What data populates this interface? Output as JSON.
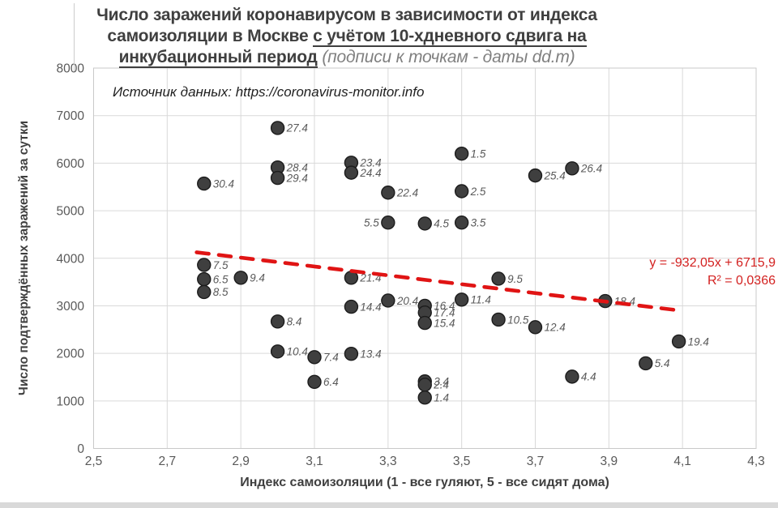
{
  "title": {
    "line1": "Число заражений коронавирусом в зависимости от индекса",
    "line2_normal": "самоизоляции в Москве ",
    "line2_underlined": "с учётом 10-хдневного сдвига на",
    "line3_underlined": "инкубационный период",
    "line3_note": " (подписи к точкам - даты dd.m)"
  },
  "source_note": "Источник данных: https://coronavirus-monitor.info",
  "trend": {
    "equation_line1": "y = -932,05x + 6715,9",
    "equation_line2": "R² = 0,0366"
  },
  "colors": {
    "marker_fill": "#3f3f3f",
    "marker_stroke": "#1c1c1c",
    "point_label": "#595959",
    "tick_label": "#595959",
    "gridline": "#d9d9d9",
    "plot_border": "#c9c9c9",
    "trendline_red": "#e01414",
    "equation_red": "#d32120",
    "title_gray": "#3f3f3f"
  },
  "chart_data": {
    "type": "scatter",
    "title": "Число заражений коронавирусом в зависимости от индекса самоизоляции в Москве с учётом 10-хдневного сдвига на инкубационный период (подписи к точкам - даты dd.m)",
    "xlabel": "Индекс самоизоляции (1 - все гуляют, 5 - все сидят дома)",
    "ylabel": "Число подтверждённых заражений за сутки",
    "xlim": [
      2.5,
      4.3
    ],
    "ylim": [
      0,
      8000
    ],
    "x_tick_values": [
      2.5,
      2.7,
      2.9,
      3.1,
      3.3,
      3.5,
      3.7,
      3.9,
      4.1,
      4.3
    ],
    "x_ticks": [
      "2,5",
      "2,7",
      "2,9",
      "3,1",
      "3,3",
      "3,5",
      "3,7",
      "3,9",
      "4,1",
      "4,3"
    ],
    "y_tick_values": [
      0,
      1000,
      2000,
      3000,
      4000,
      5000,
      6000,
      7000,
      8000
    ],
    "y_ticks": [
      "0",
      "1000",
      "2000",
      "3000",
      "4000",
      "5000",
      "6000",
      "7000",
      "8000"
    ],
    "grid": true,
    "legend": "none",
    "trendline": {
      "type": "linear",
      "slope": -932.05,
      "intercept": 6715.9,
      "r_squared": 0.0366,
      "x_start": 2.78,
      "x_end": 4.102,
      "style": "dashed"
    },
    "points": [
      {
        "label": "27.4",
        "x": 3.0,
        "y": 6740,
        "side": "right"
      },
      {
        "label": "1.5",
        "x": 3.5,
        "y": 6200,
        "side": "right"
      },
      {
        "label": "23.4",
        "x": 3.2,
        "y": 6010,
        "side": "right"
      },
      {
        "label": "28.4",
        "x": 3.0,
        "y": 5910,
        "side": "right"
      },
      {
        "label": "26.4",
        "x": 3.8,
        "y": 5890,
        "side": "right"
      },
      {
        "label": "24.4",
        "x": 3.2,
        "y": 5800,
        "side": "right"
      },
      {
        "label": "25.4",
        "x": 3.7,
        "y": 5740,
        "side": "right"
      },
      {
        "label": "29.4",
        "x": 3.0,
        "y": 5690,
        "side": "right"
      },
      {
        "label": "30.4",
        "x": 2.8,
        "y": 5570,
        "side": "right"
      },
      {
        "label": "2.5",
        "x": 3.5,
        "y": 5410,
        "side": "right"
      },
      {
        "label": "22.4",
        "x": 3.3,
        "y": 5380,
        "side": "right"
      },
      {
        "label": "5.5",
        "x": 3.3,
        "y": 4750,
        "side": "left"
      },
      {
        "label": "3.5",
        "x": 3.5,
        "y": 4750,
        "side": "right"
      },
      {
        "label": "4.5",
        "x": 3.4,
        "y": 4730,
        "side": "right"
      },
      {
        "label": "7.5",
        "x": 2.8,
        "y": 3860,
        "side": "right"
      },
      {
        "label": "9.4",
        "x": 2.9,
        "y": 3590,
        "side": "right"
      },
      {
        "label": "21.4",
        "x": 3.2,
        "y": 3590,
        "side": "right"
      },
      {
        "label": "9.5",
        "x": 3.6,
        "y": 3570,
        "side": "right"
      },
      {
        "label": "6.5",
        "x": 2.8,
        "y": 3560,
        "side": "right"
      },
      {
        "label": "8.5",
        "x": 2.8,
        "y": 3290,
        "side": "right"
      },
      {
        "label": "11.4",
        "x": 3.5,
        "y": 3130,
        "side": "right"
      },
      {
        "label": "20.4",
        "x": 3.3,
        "y": 3110,
        "side": "right"
      },
      {
        "label": "18.4",
        "x": 3.89,
        "y": 3100,
        "side": "right"
      },
      {
        "label": "16.4",
        "x": 3.4,
        "y": 3000,
        "side": "right"
      },
      {
        "label": "14.4",
        "x": 3.2,
        "y": 2980,
        "side": "right"
      },
      {
        "label": "17.4",
        "x": 3.4,
        "y": 2860,
        "side": "right"
      },
      {
        "label": "10.5",
        "x": 3.6,
        "y": 2710,
        "side": "right"
      },
      {
        "label": "8.4",
        "x": 3.0,
        "y": 2670,
        "side": "right"
      },
      {
        "label": "15.4",
        "x": 3.4,
        "y": 2640,
        "side": "right"
      },
      {
        "label": "12.4",
        "x": 3.7,
        "y": 2550,
        "side": "right"
      },
      {
        "label": "19.4",
        "x": 4.09,
        "y": 2250,
        "side": "right"
      },
      {
        "label": "10.4",
        "x": 3.0,
        "y": 2040,
        "side": "right"
      },
      {
        "label": "13.4",
        "x": 3.2,
        "y": 1990,
        "side": "right"
      },
      {
        "label": "7.4",
        "x": 3.1,
        "y": 1920,
        "side": "right"
      },
      {
        "label": "5.4",
        "x": 4.0,
        "y": 1790,
        "side": "right"
      },
      {
        "label": "4.4",
        "x": 3.8,
        "y": 1510,
        "side": "right"
      },
      {
        "label": "3.4",
        "x": 3.4,
        "y": 1410,
        "side": "right"
      },
      {
        "label": "2.4",
        "x": 3.4,
        "y": 1340,
        "side": "right"
      },
      {
        "label": "6.4",
        "x": 3.1,
        "y": 1400,
        "side": "right"
      },
      {
        "label": "1.4",
        "x": 3.4,
        "y": 1070,
        "side": "right"
      }
    ]
  }
}
